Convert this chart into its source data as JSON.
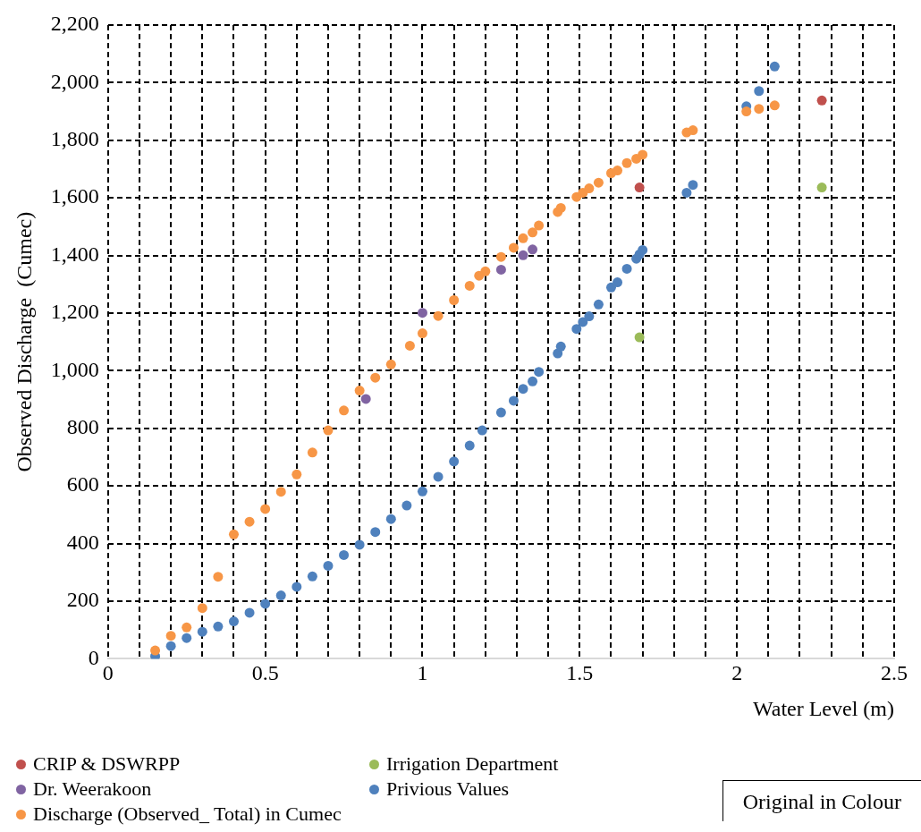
{
  "chart_data": {
    "type": "scatter",
    "xlabel": "Water Level (m)",
    "ylabel": "Observed Discharge  (Cumec)",
    "xlim": [
      0,
      2.5
    ],
    "xticks": [
      0,
      {
        "value": 0.1,
        "label": null
      },
      {
        "value": 0.2,
        "label": null
      },
      {
        "value": 0.3,
        "label": null
      },
      {
        "value": 0.4,
        "label": null
      },
      0.5,
      {
        "value": 0.6,
        "label": null
      },
      {
        "value": 0.7,
        "label": null
      },
      {
        "value": 0.8,
        "label": null
      },
      {
        "value": 0.9,
        "label": null
      },
      1,
      {
        "value": 1.1,
        "label": null
      },
      {
        "value": 1.2,
        "label": null
      },
      {
        "value": 1.3,
        "label": null
      },
      {
        "value": 1.4,
        "label": null
      },
      1.5,
      {
        "value": 1.6,
        "label": null
      },
      {
        "value": 1.7,
        "label": null
      },
      {
        "value": 1.8,
        "label": null
      },
      {
        "value": 1.9,
        "label": null
      },
      2,
      {
        "value": 2.1,
        "label": null
      },
      {
        "value": 2.2,
        "label": null
      },
      {
        "value": 2.3,
        "label": null
      },
      {
        "value": 2.4,
        "label": null
      },
      2.5
    ],
    "ylim": [
      0,
      2200
    ],
    "yticks": [
      0,
      200,
      400,
      600,
      800,
      {
        "value": 1000,
        "label": "1,000"
      },
      {
        "value": 1200,
        "label": "1,200"
      },
      {
        "value": 1400,
        "label": "1,400"
      },
      {
        "value": 1600,
        "label": "1,600"
      },
      {
        "value": 1800,
        "label": "1,800"
      },
      {
        "value": 2000,
        "label": "2,000"
      },
      {
        "value": 2200,
        "label": "2,200"
      }
    ],
    "grid": true,
    "legend": "bottom",
    "marker": "circle",
    "annotations": [
      "Original in Colour"
    ],
    "series": [
      {
        "name": "CRIP & DSWRPP",
        "color": "#c0504d",
        "x": [
          1.69,
          2.27
        ],
        "values": [
          1636,
          1938
        ]
      },
      {
        "name": "Irrigation Department",
        "color": "#9bbb59",
        "x": [
          1.69,
          2.27
        ],
        "values": [
          1116,
          1636
        ]
      },
      {
        "name": "Dr. Weerakoon",
        "color": "#8064a2",
        "x": [
          0.82,
          1.0,
          1.25,
          1.32,
          1.35
        ],
        "values": [
          902,
          1201,
          1351,
          1401,
          1421
        ]
      },
      {
        "name": "Privious Values",
        "color": "#4f81bd",
        "x": [
          0.15,
          0.2,
          0.25,
          0.3,
          0.35,
          0.4,
          0.45,
          0.5,
          0.55,
          0.6,
          0.65,
          0.7,
          0.75,
          0.8,
          0.85,
          0.9,
          0.95,
          1.0,
          1.05,
          1.1,
          1.15,
          1.19,
          1.25,
          1.29,
          1.32,
          1.35,
          1.37,
          1.43,
          1.44,
          1.49,
          1.51,
          1.53,
          1.56,
          1.6,
          1.62,
          1.65,
          1.68,
          1.69,
          1.7,
          1.84,
          1.86,
          2.03,
          2.07,
          2.12
        ],
        "values": [
          9,
          44,
          72,
          94,
          112,
          130,
          160,
          191,
          220,
          250,
          286,
          323,
          360,
          396,
          440,
          485,
          532,
          581,
          632,
          685,
          740,
          793,
          855,
          896,
          937,
          963,
          996,
          1060,
          1084,
          1145,
          1169,
          1189,
          1230,
          1289,
          1307,
          1354,
          1389,
          1404,
          1419,
          1618,
          1645,
          1918,
          1971,
          2056
        ]
      },
      {
        "name": "Discharge (Observed_ Total) in Cumec",
        "color": "#f79646",
        "x": [
          0.15,
          0.2,
          0.25,
          0.3,
          0.35,
          0.4,
          0.45,
          0.5,
          0.55,
          0.6,
          0.65,
          0.7,
          0.75,
          0.8,
          0.85,
          0.9,
          0.96,
          1.0,
          1.05,
          1.1,
          1.15,
          1.18,
          1.2,
          1.25,
          1.29,
          1.32,
          1.35,
          1.37,
          1.43,
          1.44,
          1.49,
          1.51,
          1.53,
          1.56,
          1.6,
          1.62,
          1.65,
          1.68,
          1.7,
          1.84,
          1.86,
          2.03,
          2.07,
          2.12
        ],
        "values": [
          29,
          80,
          109,
          176,
          285,
          432,
          476,
          520,
          580,
          640,
          716,
          793,
          862,
          931,
          976,
          1022,
          1087,
          1130,
          1190,
          1245,
          1295,
          1330,
          1345,
          1395,
          1427,
          1460,
          1480,
          1504,
          1551,
          1565,
          1603,
          1618,
          1633,
          1653,
          1686,
          1695,
          1721,
          1736,
          1750,
          1827,
          1835,
          1900,
          1909,
          1921
        ]
      }
    ]
  }
}
